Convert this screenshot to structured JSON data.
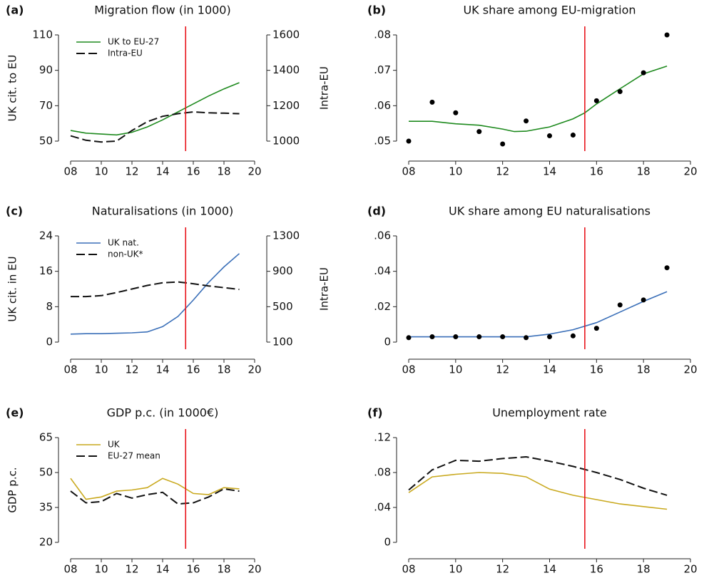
{
  "chart_data": [
    {
      "type": "line",
      "label": "(a)",
      "title": "Migration flow (in 1000)",
      "ylabel": "UK cit. to EU",
      "y2label": "Intra-EU",
      "xlim": [
        8,
        20
      ],
      "xticks": [
        {
          "value": 8,
          "label": "08"
        },
        10,
        12,
        14,
        16,
        18,
        20
      ],
      "ylim": [
        50,
        110
      ],
      "yticks": [
        50,
        70,
        90,
        110
      ],
      "y2lim": [
        1000,
        1600
      ],
      "y2ticks": [
        1000,
        1200,
        1400,
        1600
      ],
      "vline": 15.5,
      "vline_color": "#e8141c",
      "legend": "upper left",
      "series": [
        {
          "name": "UK to EU-27",
          "color": "#1e8a1e",
          "style": "solid",
          "x": [
            8,
            9,
            10,
            11,
            12,
            13,
            14,
            15,
            16,
            17,
            18,
            19
          ],
          "values": [
            56,
            54.5,
            54,
            53.5,
            55,
            58,
            62,
            66.5,
            71,
            75.5,
            79.5,
            83
          ]
        },
        {
          "name": "Intra-EU",
          "color": "#111111",
          "style": "dashed",
          "axis": "y2",
          "x": [
            8,
            9,
            10,
            11,
            12,
            13,
            14,
            15,
            16,
            17,
            18,
            19
          ],
          "values": [
            1030,
            1005,
            995,
            1000,
            1060,
            1110,
            1140,
            1155,
            1165,
            1160,
            1158,
            1155
          ]
        }
      ]
    },
    {
      "type": "line",
      "label": "(b)",
      "title": "UK share among EU-migration",
      "xlim": [
        8,
        20
      ],
      "xticks": [
        {
          "value": 8,
          "label": "08"
        },
        10,
        12,
        14,
        16,
        18,
        20
      ],
      "ylim": [
        0.05,
        0.08
      ],
      "yticks": [
        {
          "value": 0.05,
          "label": ".05"
        },
        {
          "value": 0.06,
          "label": ".06"
        },
        {
          "value": 0.07,
          "label": ".07"
        },
        {
          "value": 0.08,
          "label": ".08"
        }
      ],
      "vline": 15.5,
      "vline_color": "#e8141c",
      "series": [
        {
          "color": "#1e8a1e",
          "style": "solid",
          "x": [
            8,
            9,
            10,
            11,
            12,
            12.5,
            13,
            14,
            15,
            15.5,
            16,
            17,
            18,
            19
          ],
          "values": [
            0.0556,
            0.0556,
            0.0549,
            0.0545,
            0.0534,
            0.0527,
            0.0528,
            0.054,
            0.0563,
            0.058,
            0.0605,
            0.0648,
            0.069,
            0.0712
          ]
        },
        {
          "color": "#000000",
          "style": "points",
          "x": [
            8,
            9,
            10,
            11,
            12,
            13,
            14,
            15,
            16,
            17,
            18,
            19
          ],
          "values": [
            0.05,
            0.061,
            0.058,
            0.0527,
            0.0492,
            0.0557,
            0.0515,
            0.0517,
            0.0614,
            0.064,
            0.0693,
            0.08
          ]
        }
      ]
    },
    {
      "type": "line",
      "label": "(c)",
      "title": "Naturalisations (in 1000)",
      "ylabel": "UK cit. in EU",
      "y2label": "Intra-EU",
      "xlim": [
        8,
        20
      ],
      "xticks": [
        {
          "value": 8,
          "label": "08"
        },
        10,
        12,
        14,
        16,
        18,
        20
      ],
      "ylim": [
        0,
        24
      ],
      "yticks": [
        0,
        8,
        16,
        24
      ],
      "y2lim": [
        100,
        1300
      ],
      "y2ticks": [
        100,
        500,
        900,
        1300
      ],
      "vline": 15.5,
      "vline_color": "#e8141c",
      "legend": "upper left",
      "series": [
        {
          "name": "UK nat.",
          "color": "#3a6fb8",
          "style": "solid",
          "x": [
            8,
            9,
            10,
            11,
            12,
            13,
            14,
            15,
            16,
            17,
            18,
            19
          ],
          "values": [
            1.8,
            1.9,
            1.9,
            2.0,
            2.1,
            2.3,
            3.5,
            5.8,
            9.5,
            13.5,
            17,
            20
          ]
        },
        {
          "name": "non-UK*",
          "color": "#111111",
          "style": "dashed",
          "axis": "y2",
          "x": [
            8,
            9,
            10,
            11,
            12,
            13,
            14,
            15,
            16,
            17,
            18,
            19
          ],
          "values": [
            615,
            615,
            625,
            660,
            700,
            740,
            770,
            780,
            760,
            735,
            715,
            695
          ]
        }
      ]
    },
    {
      "type": "line",
      "label": "(d)",
      "title": "UK share among EU naturalisations",
      "xlim": [
        8,
        20
      ],
      "xticks": [
        {
          "value": 8,
          "label": "08"
        },
        10,
        12,
        14,
        16,
        18,
        20
      ],
      "ylim": [
        0,
        0.06
      ],
      "yticks": [
        0,
        {
          "value": 0.02,
          "label": ".02"
        },
        {
          "value": 0.04,
          "label": ".04"
        },
        {
          "value": 0.06,
          "label": ".06"
        }
      ],
      "vline": 15.5,
      "vline_color": "#e8141c",
      "series": [
        {
          "color": "#3a6fb8",
          "style": "solid",
          "x": [
            8,
            9,
            10,
            11,
            12,
            13,
            14,
            15,
            16,
            17,
            18,
            19
          ],
          "values": [
            0.003,
            0.003,
            0.003,
            0.003,
            0.003,
            0.003,
            0.0045,
            0.007,
            0.011,
            0.017,
            0.023,
            0.0285
          ]
        },
        {
          "color": "#000000",
          "style": "points",
          "x": [
            8,
            9,
            10,
            11,
            12,
            13,
            14,
            15,
            16,
            17,
            18,
            19
          ],
          "values": [
            0.0025,
            0.003,
            0.003,
            0.003,
            0.003,
            0.0025,
            0.003,
            0.0035,
            0.0078,
            0.021,
            0.0238,
            0.042
          ]
        }
      ]
    },
    {
      "type": "line",
      "label": "(e)",
      "title": "GDP p.c. (in 1000€)",
      "ylabel": "GDP p.c.",
      "xlim": [
        8,
        20
      ],
      "xticks": [
        {
          "value": 8,
          "label": "08"
        },
        10,
        12,
        14,
        16,
        18,
        20
      ],
      "ylim": [
        20,
        65
      ],
      "yticks": [
        20,
        35,
        50,
        65
      ],
      "vline": 15.5,
      "vline_color": "#e8141c",
      "legend": "upper left",
      "series": [
        {
          "name": "UK",
          "color": "#c9a91e",
          "style": "solid",
          "x": [
            8,
            9,
            10,
            11,
            12,
            13,
            14,
            15,
            16,
            17,
            18,
            19
          ],
          "values": [
            47.5,
            38.5,
            39.5,
            42,
            42.5,
            43.5,
            47.5,
            45,
            41,
            40.5,
            43.5,
            43
          ]
        },
        {
          "name": "EU-27 mean",
          "color": "#111111",
          "style": "dashed",
          "x": [
            8,
            9,
            10,
            11,
            12,
            13,
            14,
            15,
            16,
            17,
            18,
            19
          ],
          "values": [
            42,
            37,
            37.5,
            41,
            39,
            40.5,
            41.5,
            36.5,
            37,
            39.5,
            43,
            42
          ]
        }
      ]
    },
    {
      "type": "line",
      "label": "(f)",
      "title": "Unemployment rate",
      "xlim": [
        8,
        20
      ],
      "xticks": [
        {
          "value": 8,
          "label": "08"
        },
        10,
        12,
        14,
        16,
        18,
        20
      ],
      "ylim": [
        0,
        0.12
      ],
      "yticks": [
        0,
        {
          "value": 0.04,
          "label": ".04"
        },
        {
          "value": 0.08,
          "label": ".08"
        },
        {
          "value": 0.12,
          "label": ".12"
        }
      ],
      "vline": 15.5,
      "vline_color": "#e8141c",
      "series": [
        {
          "color": "#c9a91e",
          "style": "solid",
          "x": [
            8,
            9,
            10,
            11,
            12,
            13,
            14,
            15,
            16,
            17,
            18,
            19
          ],
          "values": [
            0.057,
            0.075,
            0.078,
            0.08,
            0.079,
            0.075,
            0.061,
            0.054,
            0.049,
            0.044,
            0.041,
            0.038
          ]
        },
        {
          "color": "#111111",
          "style": "dashed",
          "x": [
            8,
            9,
            10,
            11,
            12,
            13,
            14,
            15,
            16,
            17,
            18,
            19
          ],
          "values": [
            0.06,
            0.083,
            0.094,
            0.093,
            0.096,
            0.098,
            0.093,
            0.087,
            0.08,
            0.072,
            0.062,
            0.054
          ]
        }
      ]
    }
  ]
}
